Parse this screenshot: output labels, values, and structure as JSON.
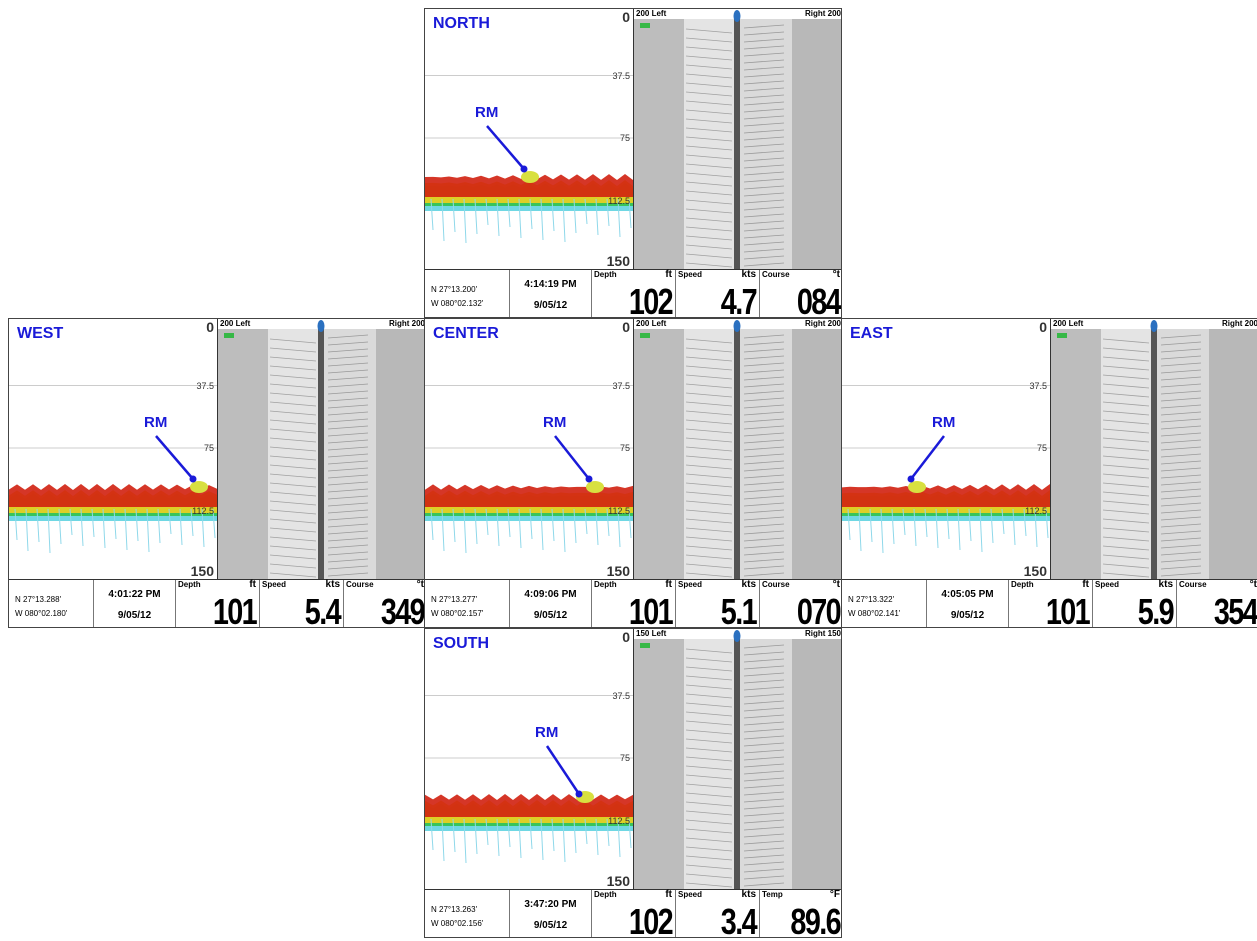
{
  "panels": [
    {
      "name": "NORTH",
      "marker": "RM",
      "depth_scale": [
        0,
        37.5,
        75,
        112.5,
        150
      ],
      "range_left": "200 Left",
      "range_right": "Right 200",
      "lat": "N 27°13.200'",
      "lon": "W 080°02.132'",
      "time": "4:14:19 PM",
      "date": "9/05/12",
      "readouts": [
        {
          "label": "Depth",
          "unit": "ft",
          "value": 102
        },
        {
          "label": "Speed",
          "unit": "kts",
          "value": 4.7
        },
        {
          "label": "Course",
          "unit": "°t",
          "value": "084"
        }
      ]
    },
    {
      "name": "WEST",
      "marker": "RM",
      "depth_scale": [
        0,
        37.5,
        75,
        112.5,
        150
      ],
      "range_left": "200 Left",
      "range_right": "Right 200",
      "lat": "N 27°13.288'",
      "lon": "W 080°02.180'",
      "time": "4:01:22 PM",
      "date": "9/05/12",
      "readouts": [
        {
          "label": "Depth",
          "unit": "ft",
          "value": 101
        },
        {
          "label": "Speed",
          "unit": "kts",
          "value": 5.4
        },
        {
          "label": "Course",
          "unit": "°t",
          "value": 349
        }
      ]
    },
    {
      "name": "CENTER",
      "marker": "RM",
      "depth_scale": [
        0,
        37.5,
        75,
        112.5,
        150
      ],
      "range_left": "200 Left",
      "range_right": "Right 200",
      "lat": "N 27°13.277'",
      "lon": "W 080°02.157'",
      "time": "4:09:06 PM",
      "date": "9/05/12",
      "readouts": [
        {
          "label": "Depth",
          "unit": "ft",
          "value": 101
        },
        {
          "label": "Speed",
          "unit": "kts",
          "value": 5.1
        },
        {
          "label": "Course",
          "unit": "°t",
          "value": "070"
        }
      ]
    },
    {
      "name": "EAST",
      "marker": "RM",
      "depth_scale": [
        0,
        37.5,
        75,
        112.5,
        150
      ],
      "range_left": "200 Left",
      "range_right": "Right 200",
      "lat": "N 27°13.322'",
      "lon": "W 080°02.141'",
      "time": "4:05:05 PM",
      "date": "9/05/12",
      "readouts": [
        {
          "label": "Depth",
          "unit": "ft",
          "value": 101
        },
        {
          "label": "Speed",
          "unit": "kts",
          "value": 5.9
        },
        {
          "label": "Course",
          "unit": "°t",
          "value": 354
        }
      ]
    },
    {
      "name": "SOUTH",
      "marker": "RM",
      "depth_scale": [
        0,
        37.5,
        75,
        112.5,
        150
      ],
      "range_left": "150 Left",
      "range_right": "Right 150",
      "lat": "N 27°13.263'",
      "lon": "W 080°02.156'",
      "time": "3:47:20 PM",
      "date": "9/05/12",
      "readouts": [
        {
          "label": "Depth",
          "unit": "ft",
          "value": 102
        },
        {
          "label": "Speed",
          "unit": "kts",
          "value": 3.4
        },
        {
          "label": "Temp",
          "unit": "°F",
          "value": 89.6
        }
      ]
    }
  ]
}
